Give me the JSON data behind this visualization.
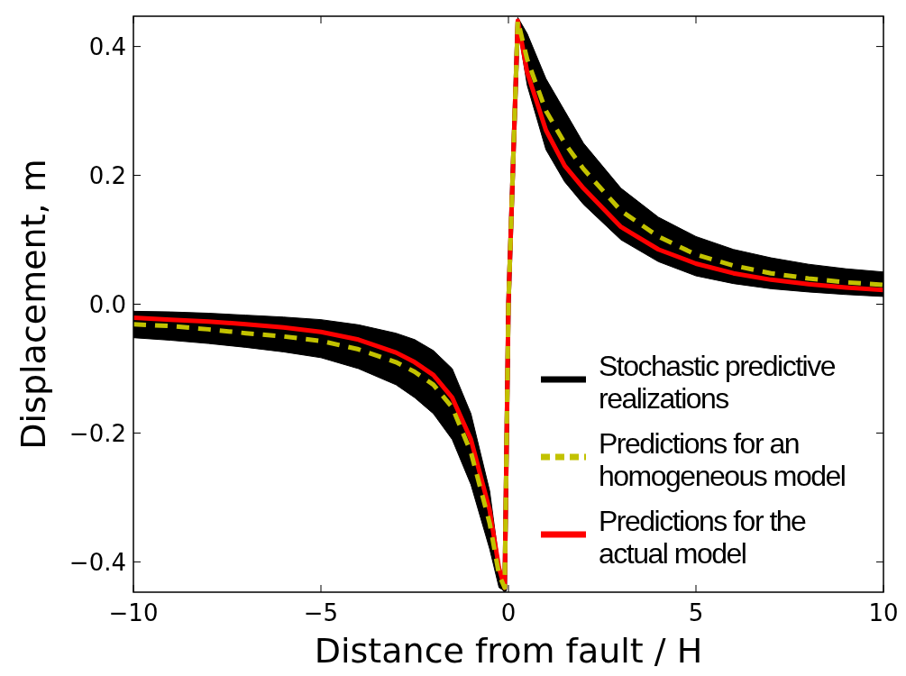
{
  "chart_data": {
    "type": "line",
    "xlabel": "Distance from fault / H",
    "ylabel": "Displacement, m",
    "x": [
      -10,
      -9,
      -8,
      -7,
      -6,
      -5,
      -4,
      -3,
      -2.5,
      -2,
      -1.5,
      -1,
      -0.5,
      -0.25,
      -0.1,
      0,
      0.25,
      0.5,
      1,
      1.5,
      2,
      3,
      4,
      5,
      6,
      7,
      8,
      9,
      10
    ],
    "xlim": [
      -10,
      10
    ],
    "ylim": [
      -0.447,
      0.447
    ],
    "xticks": [
      {
        "value": -10,
        "label": "−10"
      },
      {
        "value": -5,
        "label": "−5"
      },
      0,
      5,
      10
    ],
    "yticks": [
      {
        "value": -0.4,
        "label": "−0.4"
      },
      {
        "value": -0.2,
        "label": "−0.2"
      },
      {
        "value": 0,
        "label": "0.0"
      },
      0.2,
      0.4
    ],
    "legend": "bottom right",
    "series": [
      {
        "name": "Stochastic predictive realizations",
        "color": "#000000",
        "line_style": "solid",
        "values": [
          -0.032,
          -0.034,
          -0.038,
          -0.042,
          -0.047,
          -0.054,
          -0.066,
          -0.085,
          -0.1,
          -0.121,
          -0.155,
          -0.225,
          -0.335,
          -0.42,
          -0.443,
          0,
          0.438,
          0.38,
          0.295,
          0.245,
          0.203,
          0.14,
          0.1,
          0.075,
          0.058,
          0.048,
          0.04,
          0.035,
          0.031
        ],
        "lower": [
          -0.052,
          -0.056,
          -0.061,
          -0.067,
          -0.074,
          -0.083,
          -0.1,
          -0.125,
          -0.145,
          -0.17,
          -0.21,
          -0.28,
          -0.38,
          -0.44,
          -0.445,
          0,
          0.43,
          0.34,
          0.24,
          0.19,
          0.155,
          0.1,
          0.066,
          0.044,
          0.032,
          0.024,
          0.019,
          0.015,
          0.012
        ],
        "upper": [
          -0.011,
          -0.012,
          -0.014,
          -0.017,
          -0.02,
          -0.024,
          -0.032,
          -0.045,
          -0.055,
          -0.072,
          -0.1,
          -0.17,
          -0.29,
          -0.4,
          -0.44,
          0,
          0.445,
          0.42,
          0.35,
          0.3,
          0.25,
          0.18,
          0.135,
          0.105,
          0.085,
          0.072,
          0.062,
          0.055,
          0.05
        ]
      },
      {
        "name": "Predictions for the actual model",
        "color": "#ff0000",
        "line_style": "solid",
        "values": [
          -0.021,
          -0.024,
          -0.027,
          -0.031,
          -0.036,
          -0.043,
          -0.055,
          -0.075,
          -0.09,
          -0.11,
          -0.145,
          -0.21,
          -0.32,
          -0.41,
          -0.44,
          0,
          0.44,
          0.36,
          0.27,
          0.215,
          0.18,
          0.12,
          0.085,
          0.063,
          0.048,
          0.038,
          0.031,
          0.026,
          0.022
        ]
      },
      {
        "name": "Predictions for an homogeneous model",
        "color": "#c2c200",
        "line_style": "dashed",
        "values": [
          -0.031,
          -0.034,
          -0.039,
          -0.045,
          -0.05,
          -0.057,
          -0.07,
          -0.09,
          -0.105,
          -0.125,
          -0.16,
          -0.23,
          -0.34,
          -0.42,
          -0.44,
          0,
          0.44,
          0.38,
          0.3,
          0.25,
          0.21,
          0.145,
          0.105,
          0.077,
          0.06,
          0.048,
          0.04,
          0.034,
          0.03
        ]
      }
    ]
  }
}
